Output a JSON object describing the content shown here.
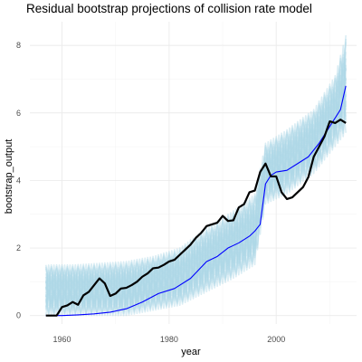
{
  "chart_data": {
    "type": "line",
    "title": "Residual bootstrap projections of collision rate model",
    "xlabel": "year",
    "ylabel": "bootstrap_output",
    "xlim": [
      1954,
      2015
    ],
    "ylim": [
      -0.25,
      8.7
    ],
    "x_ticks": [
      1960,
      1980,
      2000
    ],
    "y_ticks": [
      0,
      2,
      4,
      6,
      8
    ],
    "grid": true,
    "colors": {
      "bootstrap": "#add8e6",
      "fitted": "#0000ff",
      "observed": "#000000"
    },
    "bootstrap_band": {
      "x": [
        1957,
        1962,
        1967,
        1972,
        1977,
        1982,
        1987,
        1992,
        1996,
        1998,
        2002,
        2007,
        2011,
        2013
      ],
      "lower": [
        0.0,
        0.0,
        0.0,
        0.0,
        0.15,
        0.3,
        0.7,
        1.1,
        1.5,
        3.3,
        3.6,
        4.2,
        5.0,
        5.4
      ],
      "upper": [
        1.5,
        1.5,
        1.55,
        1.6,
        1.75,
        2.0,
        2.6,
        3.1,
        3.6,
        5.1,
        5.5,
        6.1,
        7.1,
        8.3
      ]
    },
    "series": [
      {
        "name": "fitted",
        "x": [
          1957,
          1960,
          1963,
          1966,
          1969,
          1972,
          1975,
          1978,
          1981,
          1984,
          1987,
          1989,
          1991,
          1993,
          1995,
          1996,
          1997,
          1998,
          1999,
          2000,
          2002,
          2004,
          2006,
          2008,
          2010,
          2012,
          2013
        ],
        "y": [
          0.0,
          0.0,
          0.02,
          0.05,
          0.1,
          0.2,
          0.4,
          0.65,
          0.8,
          1.1,
          1.6,
          1.75,
          2.0,
          2.15,
          2.35,
          2.5,
          2.7,
          3.9,
          4.15,
          4.25,
          4.3,
          4.5,
          4.7,
          5.1,
          5.6,
          6.1,
          6.8
        ]
      },
      {
        "name": "observed",
        "x": [
          1957,
          1958,
          1959,
          1960,
          1961,
          1962,
          1963,
          1964,
          1965,
          1966,
          1967,
          1968,
          1969,
          1970,
          1971,
          1972,
          1973,
          1974,
          1975,
          1976,
          1977,
          1978,
          1979,
          1980,
          1981,
          1982,
          1983,
          1984,
          1985,
          1986,
          1987,
          1988,
          1989,
          1990,
          1991,
          1992,
          1993,
          1994,
          1995,
          1996,
          1997,
          1998,
          1999,
          2000,
          2001,
          2002,
          2003,
          2004,
          2005,
          2006,
          2007,
          2008,
          2009,
          2010,
          2011,
          2012,
          2013
        ],
        "y": [
          0.0,
          0.0,
          0.0,
          0.25,
          0.3,
          0.4,
          0.32,
          0.6,
          0.7,
          0.9,
          1.1,
          0.95,
          0.58,
          0.65,
          0.8,
          0.82,
          0.9,
          1.0,
          1.15,
          1.25,
          1.4,
          1.42,
          1.5,
          1.6,
          1.65,
          1.8,
          1.95,
          2.1,
          2.3,
          2.45,
          2.65,
          2.7,
          2.75,
          2.95,
          2.8,
          2.82,
          3.2,
          3.3,
          3.65,
          3.7,
          4.25,
          4.5,
          4.12,
          4.12,
          3.65,
          3.45,
          3.5,
          3.65,
          3.8,
          4.1,
          4.7,
          5.0,
          5.3,
          5.75,
          5.7,
          5.8,
          5.7
        ]
      }
    ]
  }
}
